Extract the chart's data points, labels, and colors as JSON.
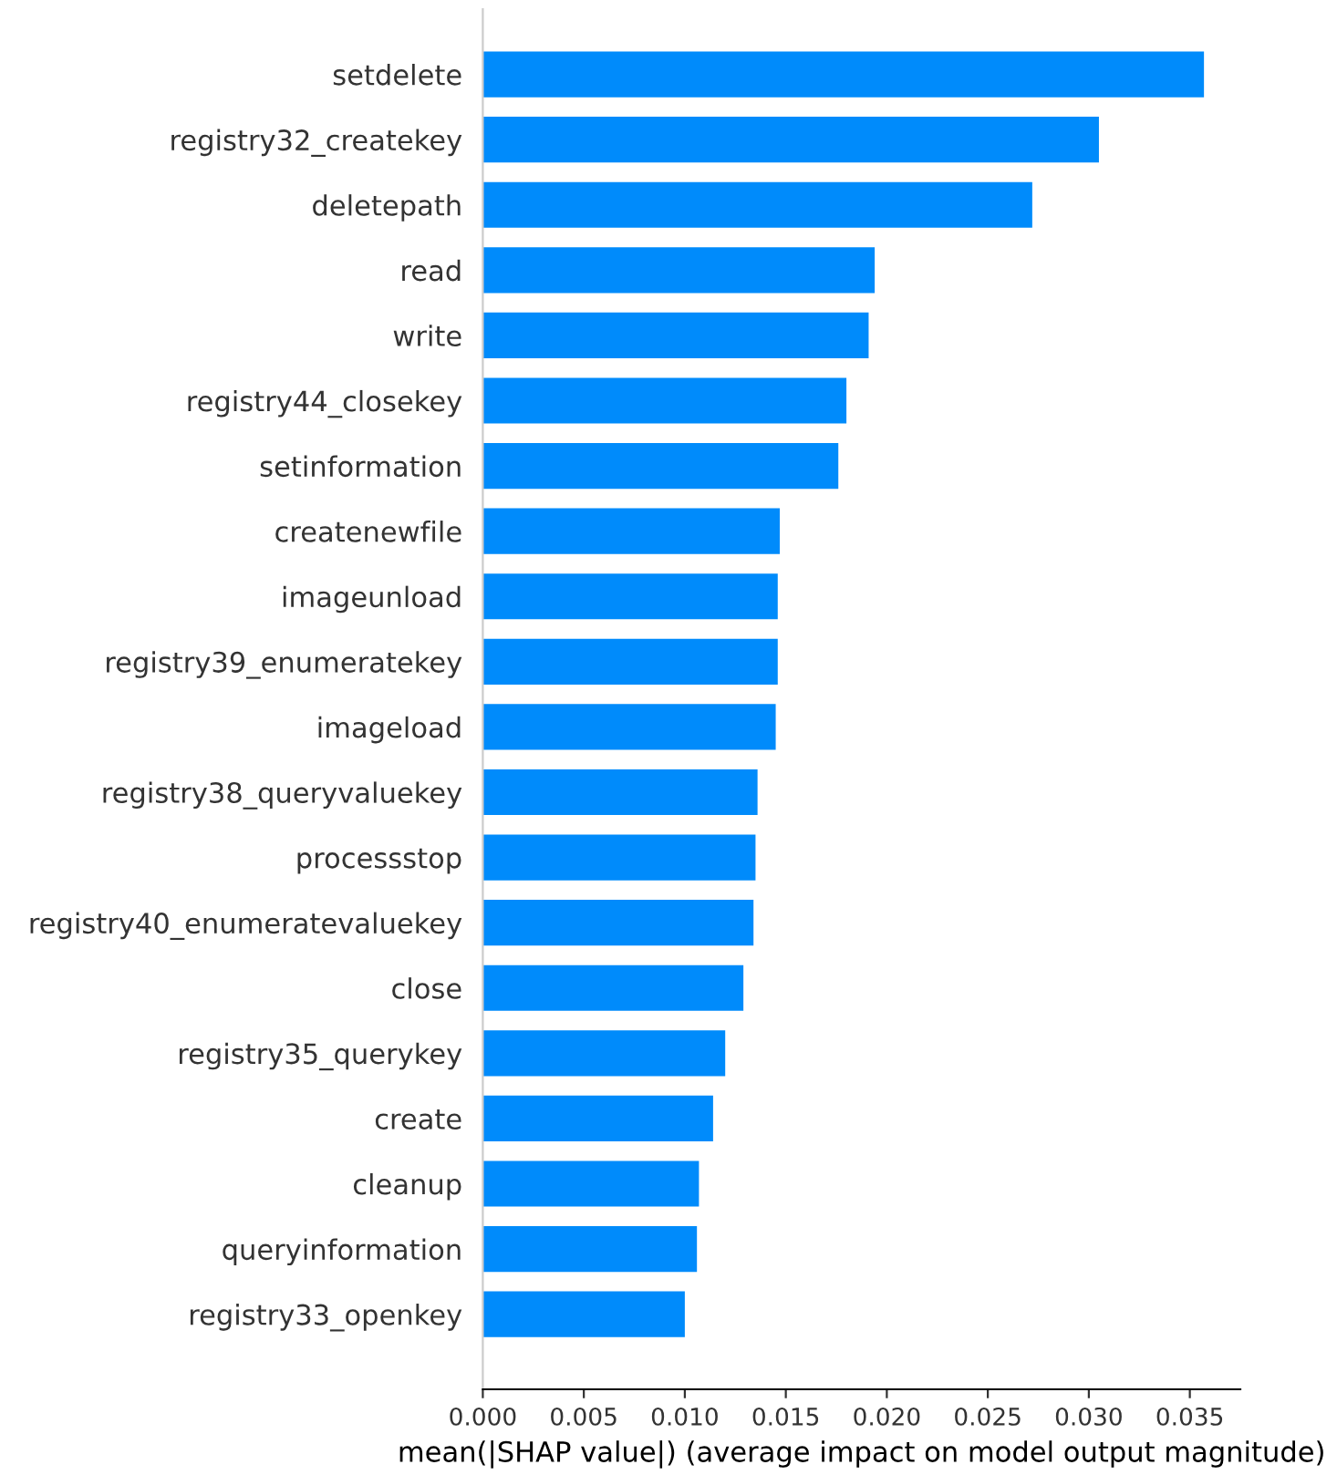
{
  "chart_data": {
    "type": "bar",
    "orientation": "horizontal",
    "xlabel": "mean(|SHAP value|) (average impact on model output magnitude)",
    "categories": [
      "setdelete",
      "registry32_createkey",
      "deletepath",
      "read",
      "write",
      "registry44_closekey",
      "setinformation",
      "createnewfile",
      "imageunload",
      "registry39_enumeratekey",
      "imageload",
      "registry38_queryvaluekey",
      "processstop",
      "registry40_enumeratevaluekey",
      "close",
      "registry35_querykey",
      "create",
      "cleanup",
      "queryinformation",
      "registry33_openkey"
    ],
    "values": [
      0.0357,
      0.0305,
      0.0272,
      0.0194,
      0.0191,
      0.018,
      0.0176,
      0.0147,
      0.0146,
      0.0146,
      0.0145,
      0.0136,
      0.0135,
      0.0134,
      0.0129,
      0.012,
      0.0114,
      0.0107,
      0.0106,
      0.01
    ],
    "color": "#008bfb",
    "xlim": [
      0,
      0.0375
    ],
    "xticks": [
      {
        "value": 0,
        "label": "0.000"
      },
      {
        "value": 0.005,
        "label": "0.005"
      },
      {
        "value": 0.01,
        "label": "0.010"
      },
      {
        "value": 0.015,
        "label": "0.015"
      },
      {
        "value": 0.02,
        "label": "0.020"
      },
      {
        "value": 0.025,
        "label": "0.025"
      },
      {
        "value": 0.03,
        "label": "0.030"
      },
      {
        "value": 0.035,
        "label": "0.035"
      }
    ],
    "grid": false
  }
}
